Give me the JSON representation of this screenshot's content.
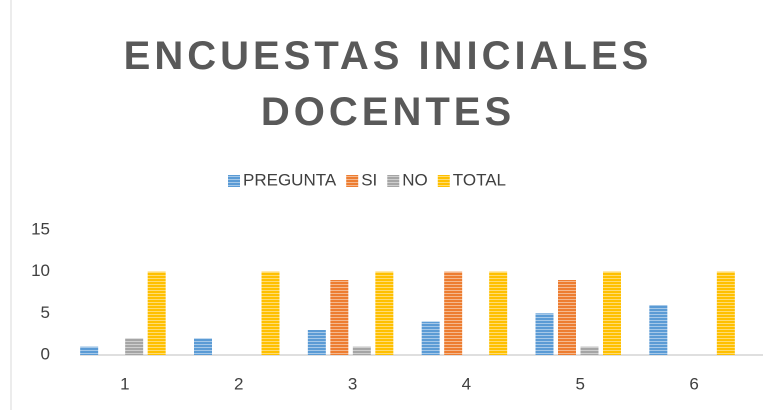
{
  "chart_data": {
    "type": "bar",
    "title": "ENCUESTAS INICIALES DOCENTES",
    "categories": [
      "1",
      "2",
      "3",
      "4",
      "5",
      "6"
    ],
    "series": [
      {
        "name": "PREGUNTA",
        "color": "#5b9bd5",
        "values": [
          1,
          2,
          3,
          4,
          5,
          6
        ]
      },
      {
        "name": "SI",
        "color": "#ed7d31",
        "values": [
          0,
          0,
          9,
          10,
          9,
          0
        ]
      },
      {
        "name": "NO",
        "color": "#a5a5a5",
        "values": [
          2,
          0,
          1,
          0,
          1,
          0
        ]
      },
      {
        "name": "TOTAL",
        "color": "#ffc000",
        "values": [
          10,
          10,
          10,
          10,
          10,
          10
        ]
      }
    ],
    "ylim": [
      0,
      15
    ],
    "yticks": [
      0,
      5,
      10,
      15
    ],
    "grid": false,
    "legend": "top"
  }
}
